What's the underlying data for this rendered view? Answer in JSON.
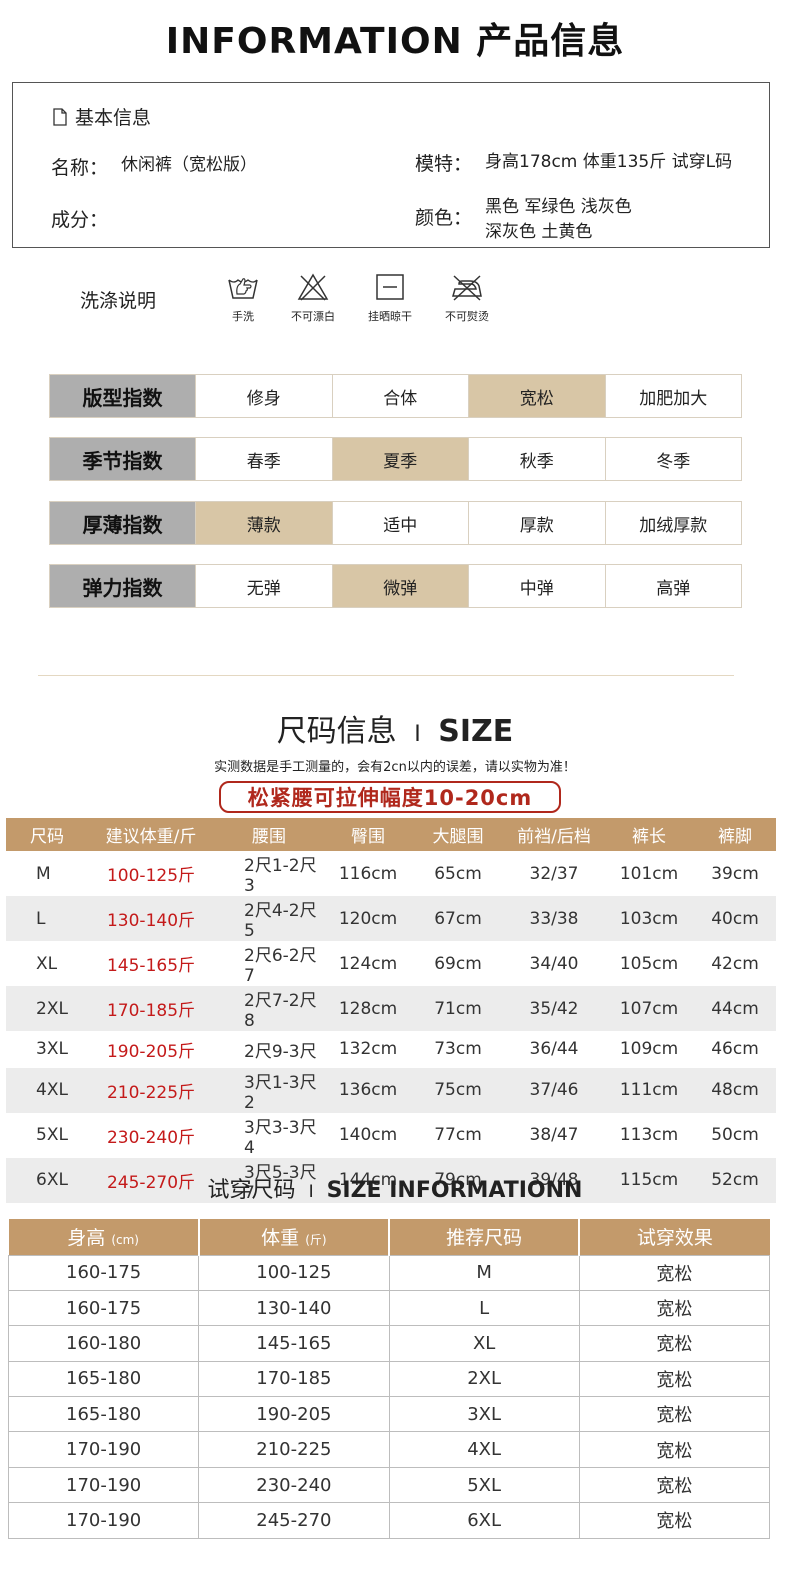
{
  "header": "INFORMATION 产品信息",
  "basic": {
    "title": "基本信息",
    "name_label": "名称：",
    "name_value": "休闲裤（宽松版）",
    "composition_label": "成分：",
    "model_label": "模特：",
    "model_value": "身高178cm 体重135斤 试穿L码",
    "color_label": "颜色：",
    "color_line1": "黑色  军绿色  浅灰色",
    "color_line2": "深灰色  土黄色"
  },
  "care": {
    "title": "洗涤说明",
    "items": [
      {
        "icon": "hand-wash-icon",
        "label": "手洗"
      },
      {
        "icon": "no-bleach-icon",
        "label": "不可漂白"
      },
      {
        "icon": "hang-dry-icon",
        "label": "挂晒晾干"
      },
      {
        "icon": "no-iron-icon",
        "label": "不可熨烫"
      }
    ]
  },
  "indices": [
    {
      "label": "版型指数",
      "options": [
        "修身",
        "合体",
        "宽松",
        "加肥加大"
      ],
      "selected": 2
    },
    {
      "label": "季节指数",
      "options": [
        "春季",
        "夏季",
        "秋季",
        "冬季"
      ],
      "selected": 1
    },
    {
      "label": "厚薄指数",
      "options": [
        "薄款",
        "适中",
        "厚款",
        "加绒厚款"
      ],
      "selected": 0
    },
    {
      "label": "弹力指数",
      "options": [
        "无弹",
        "微弹",
        "中弹",
        "高弹"
      ],
      "selected": 1
    }
  ],
  "size_section": {
    "title_cn": "尺码信息",
    "title_divider": "I",
    "title_en": "SIZE",
    "note": "实测数据是手工测量的，会有2cn以内的误差，请以实物为准！",
    "stretch_note": "松紧腰可拉伸幅度10-20cm",
    "headers": [
      "尺码",
      "建议体重/斤",
      "腰围",
      "臀围",
      "大腿围",
      "前裆/后档",
      "裤长",
      "裤脚"
    ],
    "rows": [
      [
        "M",
        "100-125斤",
        "2尺1-2尺3",
        "116cm",
        "65cm",
        "32/37",
        "101cm",
        "39cm"
      ],
      [
        "L",
        "130-140斤",
        "2尺4-2尺5",
        "120cm",
        "67cm",
        "33/38",
        "103cm",
        "40cm"
      ],
      [
        "XL",
        "145-165斤",
        "2尺6-2尺7",
        "124cm",
        "69cm",
        "34/40",
        "105cm",
        "42cm"
      ],
      [
        "2XL",
        "170-185斤",
        "2尺7-2尺8",
        "128cm",
        "71cm",
        "35/42",
        "107cm",
        "44cm"
      ],
      [
        "3XL",
        "190-205斤",
        "2尺9-3尺",
        "132cm",
        "73cm",
        "36/44",
        "109cm",
        "46cm"
      ],
      [
        "4XL",
        "210-225斤",
        "3尺1-3尺2",
        "136cm",
        "75cm",
        "37/46",
        "111cm",
        "48cm"
      ],
      [
        "5XL",
        "230-240斤",
        "3尺3-3尺4",
        "140cm",
        "77cm",
        "38/47",
        "113cm",
        "50cm"
      ],
      [
        "6XL",
        "245-270斤",
        "3尺5-3尺7",
        "144cm",
        "79cm",
        "39/48",
        "115cm",
        "52cm"
      ]
    ]
  },
  "try_section": {
    "title_cn": "试穿尺码",
    "title_divider": "I",
    "title_en": "SIZE INFORMATIONN",
    "headers": [
      {
        "main": "身高",
        "unit": "(cm)"
      },
      {
        "main": "体重",
        "unit": "(斤)"
      },
      {
        "main": "推荐尺码",
        "unit": ""
      },
      {
        "main": "试穿效果",
        "unit": ""
      }
    ],
    "rows": [
      [
        "160-175",
        "100-125",
        "M",
        "宽松"
      ],
      [
        "160-175",
        "130-140",
        "L",
        "宽松"
      ],
      [
        "160-180",
        "145-165",
        "XL",
        "宽松"
      ],
      [
        "165-180",
        "170-185",
        "2XL",
        "宽松"
      ],
      [
        "165-180",
        "190-205",
        "3XL",
        "宽松"
      ],
      [
        "170-190",
        "210-225",
        "4XL",
        "宽松"
      ],
      [
        "170-190",
        "230-240",
        "5XL",
        "宽松"
      ],
      [
        "170-190",
        "245-270",
        "6XL",
        "宽松"
      ]
    ]
  }
}
